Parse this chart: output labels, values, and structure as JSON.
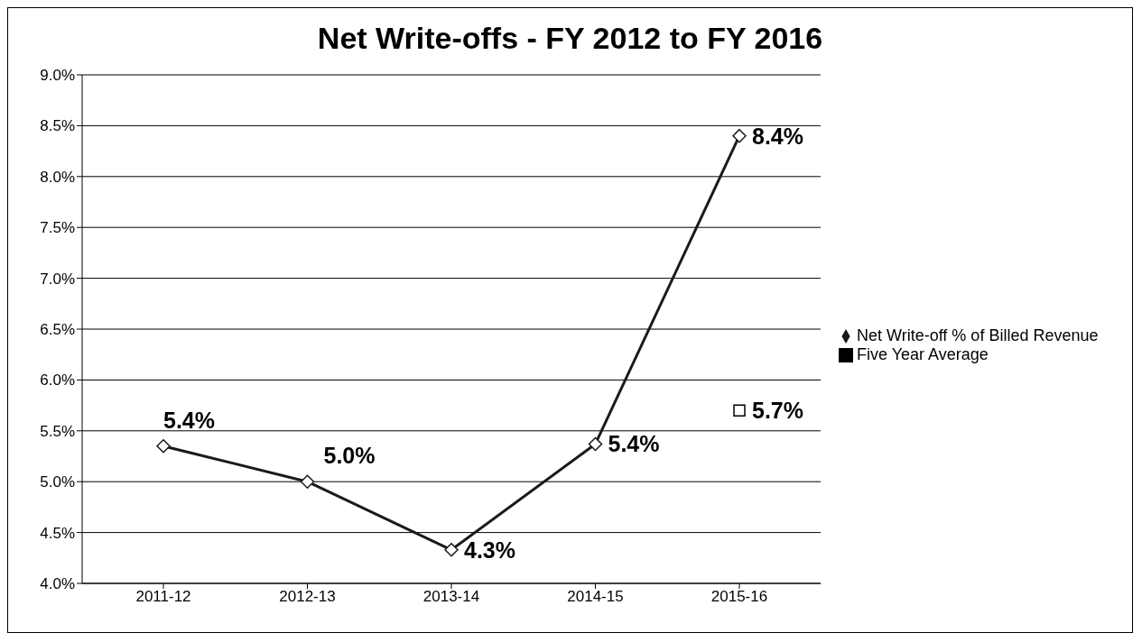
{
  "chart_data": {
    "type": "line",
    "title": "Net Write-offs - FY 2012 to FY 2016",
    "categories": [
      "2011-12",
      "2012-13",
      "2013-14",
      "2014-15",
      "2015-16"
    ],
    "series": [
      {
        "name": "Net Write-off % of Billed Revenue",
        "color": "#1a1a1a",
        "marker": "diamond",
        "values": [
          5.35,
          5.0,
          4.33,
          5.37,
          8.4
        ],
        "value_labels": [
          "5.4%",
          "5.0%",
          "4.3%",
          "5.4%",
          "8.4%"
        ]
      },
      {
        "name": "Five Year Average",
        "color": "#000000",
        "marker": "square",
        "values": [
          null,
          null,
          null,
          null,
          5.7
        ],
        "value_labels": [
          null,
          null,
          null,
          null,
          "5.7%"
        ]
      }
    ],
    "ylim": [
      4,
      9
    ],
    "yticks": [
      {
        "value": 4,
        "label": "4.0%"
      },
      {
        "value": 4.5,
        "label": "4.5%"
      },
      {
        "value": 5,
        "label": "5.0%"
      },
      {
        "value": 5.5,
        "label": "5.5%"
      },
      {
        "value": 6,
        "label": "6.0%"
      },
      {
        "value": 6.5,
        "label": "6.5%"
      },
      {
        "value": 7,
        "label": "7.0%"
      },
      {
        "value": 7.5,
        "label": "7.5%"
      },
      {
        "value": 8,
        "label": "8.0%"
      },
      {
        "value": 8.5,
        "label": "8.5%"
      },
      {
        "value": 9,
        "label": "9.0%"
      }
    ],
    "grid": "y",
    "legend": "right"
  }
}
